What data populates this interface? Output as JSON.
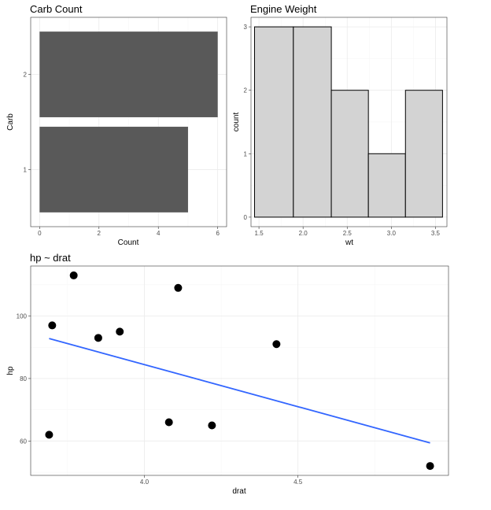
{
  "chart_data": [
    {
      "type": "bar",
      "orientation": "horizontal",
      "title": "Carb Count",
      "xlabel": "Count",
      "ylabel": "Carb",
      "categories": [
        "1",
        "2"
      ],
      "values": [
        5,
        6
      ],
      "xlim": [
        0,
        6
      ],
      "xticks": [
        0,
        2,
        4,
        6
      ],
      "bar_color": "#595959",
      "theme": "bw",
      "grid": true
    },
    {
      "type": "bar",
      "subtype": "histogram",
      "title": "Engine Weight",
      "xlabel": "wt",
      "ylabel": "count",
      "bins": [
        {
          "x0": 1.45,
          "x1": 1.89,
          "count": 3
        },
        {
          "x0": 1.89,
          "x1": 2.32,
          "count": 3
        },
        {
          "x0": 2.32,
          "x1": 2.74,
          "count": 2
        },
        {
          "x0": 2.74,
          "x1": 3.16,
          "count": 1
        },
        {
          "x0": 3.16,
          "x1": 3.58,
          "count": 2
        }
      ],
      "xticks": [
        1.5,
        2.0,
        2.5,
        3.0,
        3.5
      ],
      "yticks": [
        0,
        1,
        2,
        3
      ],
      "xlim": [
        1.41,
        3.63
      ],
      "ylim": [
        0,
        3
      ],
      "fill_color": "#d3d3d3",
      "edge_color": "#000000",
      "theme": "bw",
      "grid": true
    },
    {
      "type": "scatter",
      "title": "hp ~ drat",
      "xlabel": "drat",
      "ylabel": "hp",
      "points": [
        {
          "x": 3.69,
          "y": 62
        },
        {
          "x": 3.7,
          "y": 97
        },
        {
          "x": 3.77,
          "y": 113
        },
        {
          "x": 3.85,
          "y": 93
        },
        {
          "x": 3.92,
          "y": 95
        },
        {
          "x": 4.08,
          "y": 66
        },
        {
          "x": 4.11,
          "y": 109
        },
        {
          "x": 4.22,
          "y": 65
        },
        {
          "x": 4.43,
          "y": 91
        },
        {
          "x": 4.93,
          "y": 52
        }
      ],
      "trend_line": {
        "x": [
          3.69,
          4.93
        ],
        "y": [
          92.8,
          59.4
        ]
      },
      "xticks": [
        4.0,
        4.5
      ],
      "yticks": [
        60,
        80,
        100
      ],
      "xlim": [
        3.63,
        4.99
      ],
      "ylim": [
        49,
        116
      ],
      "point_color": "#000000",
      "line_color": "#3366ff",
      "theme": "bw",
      "grid": true
    }
  ]
}
